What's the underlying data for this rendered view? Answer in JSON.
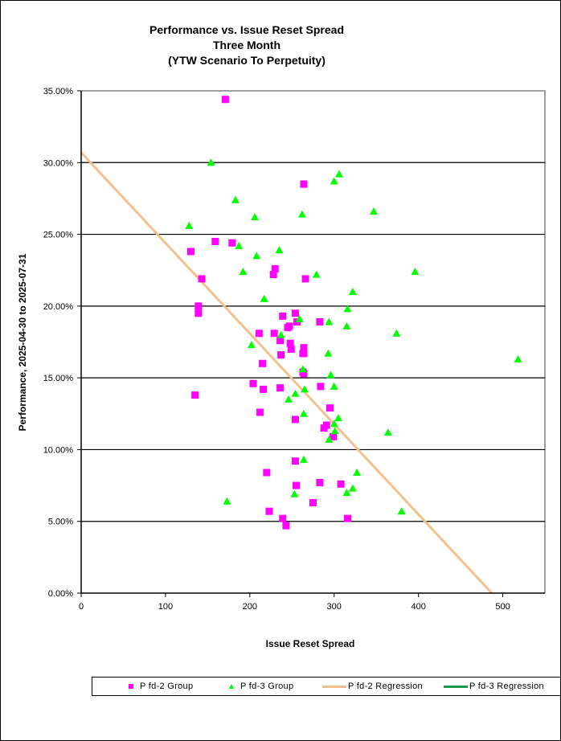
{
  "chart_data": {
    "type": "scatter",
    "title": [
      "Performance vs. Issue Reset Spread",
      "Three Month",
      "(YTW Scenario To Perpetuity)"
    ],
    "xlabel": "Issue  Reset  Spread",
    "ylabel": "Performance, 2025-04-30  to 2025-07-31",
    "xlim": [
      0,
      550
    ],
    "ylim": [
      0,
      35
    ],
    "xticks": [
      0,
      100,
      200,
      300,
      400,
      500
    ],
    "yticks": [
      0,
      5,
      10,
      15,
      20,
      25,
      30,
      35
    ],
    "ytick_labels": [
      "0.00%",
      "5.00%",
      "10.00%",
      "15.00%",
      "20.00%",
      "25.00%",
      "30.00%",
      "35.00%"
    ],
    "grid": "horizontal",
    "legend_position": "bottom",
    "colors": {
      "pfd2": "#ff00ff",
      "pfd3": "#00ff00",
      "pfd2_reg": "#f5c08e",
      "pfd3_reg": "#1a9c4a"
    },
    "series": [
      {
        "name": "P fd-2 Group",
        "marker": "square",
        "points": [
          [
            171,
            34.4
          ],
          [
            264,
            28.5
          ],
          [
            159,
            24.5
          ],
          [
            179,
            24.4
          ],
          [
            130,
            23.8
          ],
          [
            230,
            22.6
          ],
          [
            228,
            22.2
          ],
          [
            143,
            21.9
          ],
          [
            266,
            21.9
          ],
          [
            139,
            20.0
          ],
          [
            139,
            19.5
          ],
          [
            254,
            19.5
          ],
          [
            239,
            19.3
          ],
          [
            256,
            18.9
          ],
          [
            283,
            18.9
          ],
          [
            247,
            18.6
          ],
          [
            245,
            18.5
          ],
          [
            211,
            18.1
          ],
          [
            229,
            18.1
          ],
          [
            236,
            17.6
          ],
          [
            248,
            17.4
          ],
          [
            264,
            17.1
          ],
          [
            249,
            17.0
          ],
          [
            264,
            16.7
          ],
          [
            263,
            16.7
          ],
          [
            237,
            16.6
          ],
          [
            215,
            16.0
          ],
          [
            263,
            15.4
          ],
          [
            264,
            15.3
          ],
          [
            204,
            14.6
          ],
          [
            284,
            14.4
          ],
          [
            236,
            14.3
          ],
          [
            216,
            14.2
          ],
          [
            135,
            13.8
          ],
          [
            295,
            12.9
          ],
          [
            212,
            12.6
          ],
          [
            254,
            12.1
          ],
          [
            291,
            11.7
          ],
          [
            288,
            11.5
          ],
          [
            299,
            10.9
          ],
          [
            254,
            9.2
          ],
          [
            220,
            8.4
          ],
          [
            283,
            7.7
          ],
          [
            308,
            7.6
          ],
          [
            255,
            7.5
          ],
          [
            275,
            6.3
          ],
          [
            223,
            5.7
          ],
          [
            239,
            5.2
          ],
          [
            316,
            5.2
          ],
          [
            243,
            4.7
          ]
        ]
      },
      {
        "name": "P fd-3 Group",
        "marker": "triangle",
        "points": [
          [
            154,
            30.0
          ],
          [
            306,
            29.2
          ],
          [
            300,
            28.7
          ],
          [
            183,
            27.4
          ],
          [
            347,
            26.6
          ],
          [
            262,
            26.4
          ],
          [
            206,
            26.2
          ],
          [
            128,
            25.6
          ],
          [
            187,
            24.2
          ],
          [
            235,
            23.9
          ],
          [
            208,
            23.5
          ],
          [
            192,
            22.4
          ],
          [
            396,
            22.4
          ],
          [
            279,
            22.2
          ],
          [
            322,
            21.0
          ],
          [
            217,
            20.5
          ],
          [
            316,
            19.8
          ],
          [
            259,
            19.1
          ],
          [
            294,
            18.9
          ],
          [
            315,
            18.6
          ],
          [
            237,
            18.0
          ],
          [
            374,
            18.1
          ],
          [
            202,
            17.3
          ],
          [
            293,
            16.7
          ],
          [
            518,
            16.3
          ],
          [
            263,
            15.6
          ],
          [
            296,
            15.2
          ],
          [
            300,
            14.4
          ],
          [
            265,
            14.2
          ],
          [
            254,
            13.9
          ],
          [
            246,
            13.5
          ],
          [
            264,
            12.5
          ],
          [
            305,
            12.2
          ],
          [
            300,
            11.8
          ],
          [
            364,
            11.2
          ],
          [
            301,
            11.3
          ],
          [
            294,
            10.7
          ],
          [
            264,
            9.3
          ],
          [
            327,
            8.4
          ],
          [
            322,
            7.3
          ],
          [
            315,
            7.0
          ],
          [
            253,
            6.9
          ],
          [
            173,
            6.4
          ],
          [
            380,
            5.7
          ]
        ]
      },
      {
        "name": "P fd-2 Regression",
        "type": "line",
        "x": [
          0,
          487
        ],
        "y": [
          30.7,
          0
        ]
      },
      {
        "name": "P fd-3 Regression",
        "type": "line",
        "x": [],
        "y": []
      }
    ]
  }
}
